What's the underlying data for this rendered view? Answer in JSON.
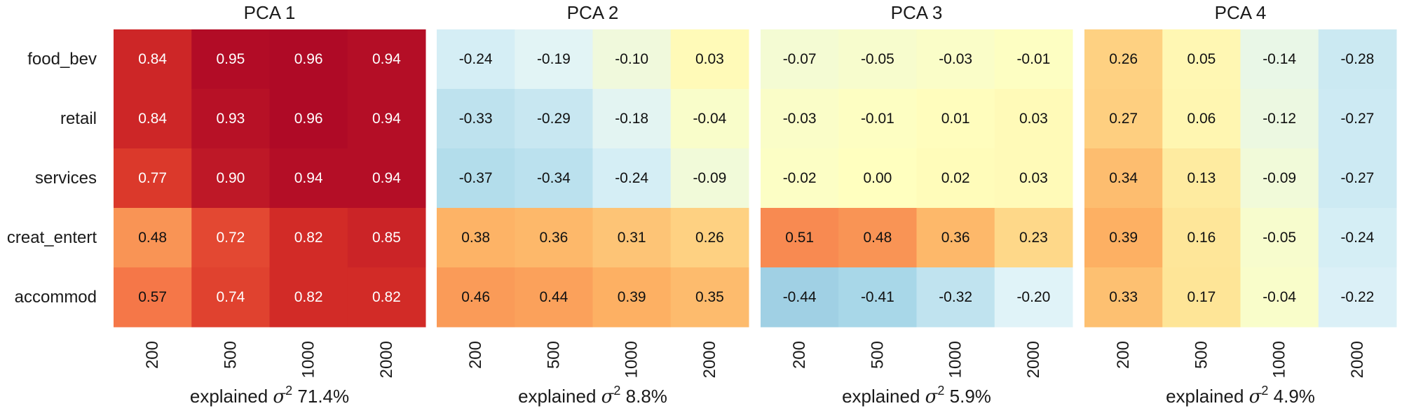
{
  "chart_data": {
    "type": "heatmap",
    "color_scale": {
      "min": -1,
      "max": 1,
      "colormap": "RdYlBu_r"
    },
    "rows": [
      "food_bev",
      "retail",
      "services",
      "creat_entert",
      "accommod"
    ],
    "columns": [
      "200",
      "500",
      "1000",
      "2000"
    ],
    "xlabel_prefix": "explained",
    "sigma_symbol": "σ",
    "sigma_exponent": "2",
    "panels": [
      {
        "title": "PCA 1",
        "explained": "71.4%",
        "values": [
          [
            0.84,
            0.95,
            0.96,
            0.94
          ],
          [
            0.84,
            0.93,
            0.96,
            0.94
          ],
          [
            0.77,
            0.9,
            0.94,
            0.94
          ],
          [
            0.48,
            0.72,
            0.82,
            0.85
          ],
          [
            0.57,
            0.74,
            0.82,
            0.82
          ]
        ]
      },
      {
        "title": "PCA 2",
        "explained": "8.8%",
        "values": [
          [
            -0.24,
            -0.19,
            -0.1,
            0.03
          ],
          [
            -0.33,
            -0.29,
            -0.18,
            -0.04
          ],
          [
            -0.37,
            -0.34,
            -0.24,
            -0.09
          ],
          [
            0.38,
            0.36,
            0.31,
            0.26
          ],
          [
            0.46,
            0.44,
            0.39,
            0.35
          ]
        ]
      },
      {
        "title": "PCA 3",
        "explained": "5.9%",
        "values": [
          [
            -0.07,
            -0.05,
            -0.03,
            -0.01
          ],
          [
            -0.03,
            -0.01,
            0.01,
            0.03
          ],
          [
            -0.02,
            0.0,
            0.02,
            0.03
          ],
          [
            0.51,
            0.48,
            0.36,
            0.23
          ],
          [
            -0.44,
            -0.41,
            -0.32,
            -0.2
          ]
        ]
      },
      {
        "title": "PCA 4",
        "explained": "4.9%",
        "values": [
          [
            0.26,
            0.05,
            -0.14,
            -0.28
          ],
          [
            0.27,
            0.06,
            -0.12,
            -0.27
          ],
          [
            0.34,
            0.13,
            -0.09,
            -0.27
          ],
          [
            0.39,
            0.16,
            -0.05,
            -0.24
          ],
          [
            0.33,
            0.17,
            -0.04,
            -0.22
          ]
        ]
      }
    ]
  }
}
